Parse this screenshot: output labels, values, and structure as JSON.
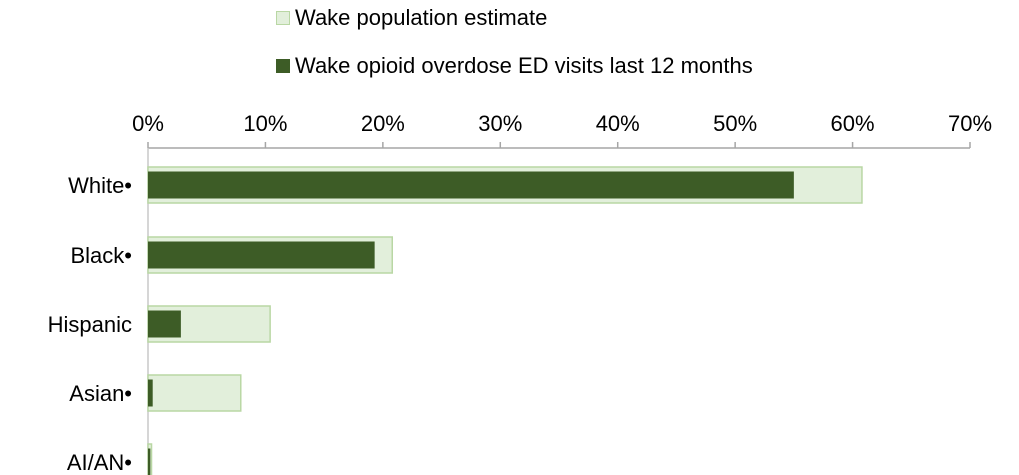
{
  "chart_data": {
    "type": "bar",
    "orientation": "horizontal",
    "categories": [
      "White•",
      "Black•",
      "Hispanic",
      "Asian•",
      "AI/AN•"
    ],
    "series": [
      {
        "name": "Wake population estimate",
        "values": [
          60.8,
          20.8,
          10.4,
          7.9,
          0.3
        ],
        "color": "#e2efdb",
        "border": "#b9d7a4"
      },
      {
        "name": "Wake opioid overdose ED visits last 12 months",
        "values": [
          55.0,
          19.3,
          2.8,
          0.4,
          0.2
        ],
        "color": "#3d5c26"
      }
    ],
    "xlim": [
      0,
      70
    ],
    "xticks": [
      "0%",
      "10%",
      "20%",
      "30%",
      "40%",
      "50%",
      "60%",
      "70%"
    ],
    "legend_position": "top",
    "grid": false
  }
}
